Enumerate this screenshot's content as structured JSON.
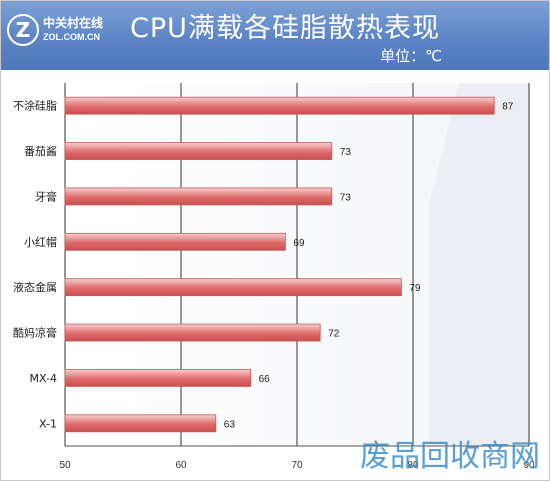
{
  "header": {
    "logo_mark": "Z",
    "logo_cn": "中关村在线",
    "logo_en": "ZOL.COM.CN",
    "title": "CPU满载各硅脂散热表现",
    "unit": "单位：℃"
  },
  "watermark": "废品回收商网",
  "colors": {
    "header_bg": "#5a82c4",
    "bar_fill": "#e06b6b",
    "bar_light": "#f6cfcf",
    "grid": "#000000"
  },
  "chart_data": {
    "type": "bar",
    "orientation": "horizontal",
    "categories": [
      "不涂硅脂",
      "番茄酱",
      "牙膏",
      "小红帽",
      "液态金属",
      "酷妈凉膏",
      "MX-4",
      "X-1"
    ],
    "values": [
      87,
      73,
      73,
      69,
      79,
      72,
      66,
      63
    ],
    "xlim": [
      50,
      90
    ],
    "xticks": [
      50,
      60,
      70,
      80,
      90
    ],
    "grid": true
  }
}
